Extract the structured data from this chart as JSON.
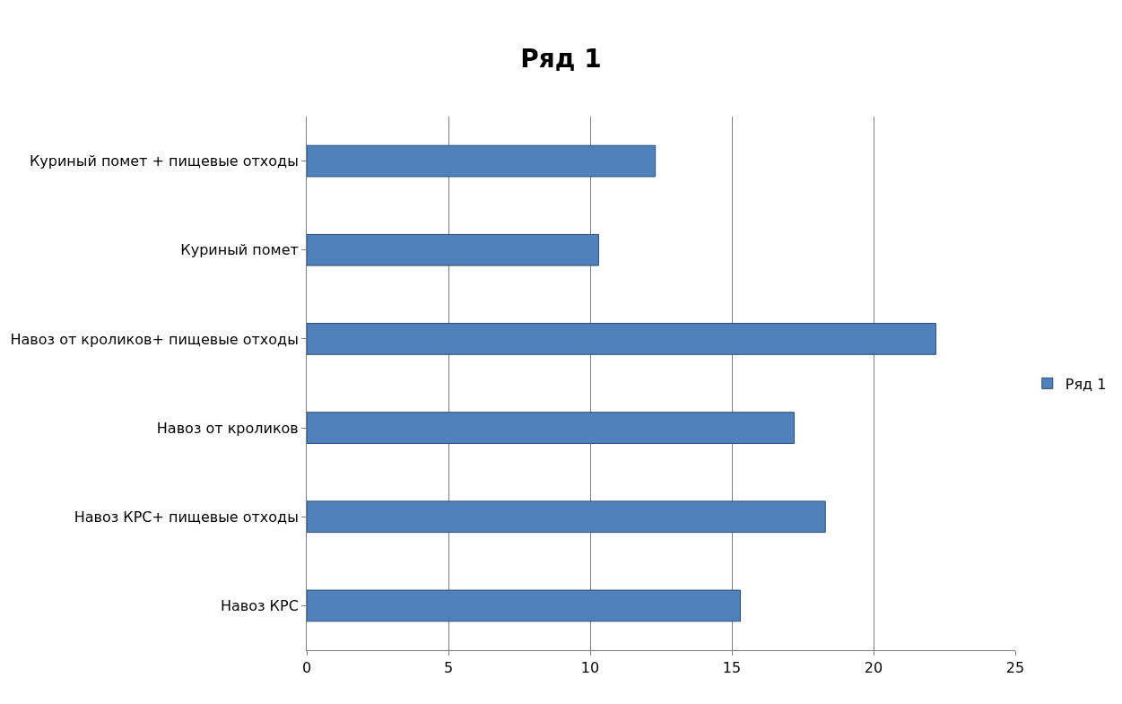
{
  "chart_data": {
    "type": "bar",
    "orientation": "horizontal",
    "title": "Ряд 1",
    "categories": [
      "Куриный помет + пищевые отходы",
      "Куриный помет",
      "Навоз от кроликов+ пищевые отходы",
      "Навоз от кроликов",
      "Навоз КРС+ пищевые отходы",
      "Навоз КРС"
    ],
    "series": [
      {
        "name": "Ряд 1",
        "color": "#4f81bd",
        "values": [
          12.3,
          10.3,
          22.2,
          17.2,
          18.3,
          15.3
        ]
      }
    ],
    "xlim": [
      0,
      25
    ],
    "xticks": [
      0,
      5,
      10,
      15,
      20,
      25
    ],
    "grid": "x",
    "legend": "right"
  }
}
